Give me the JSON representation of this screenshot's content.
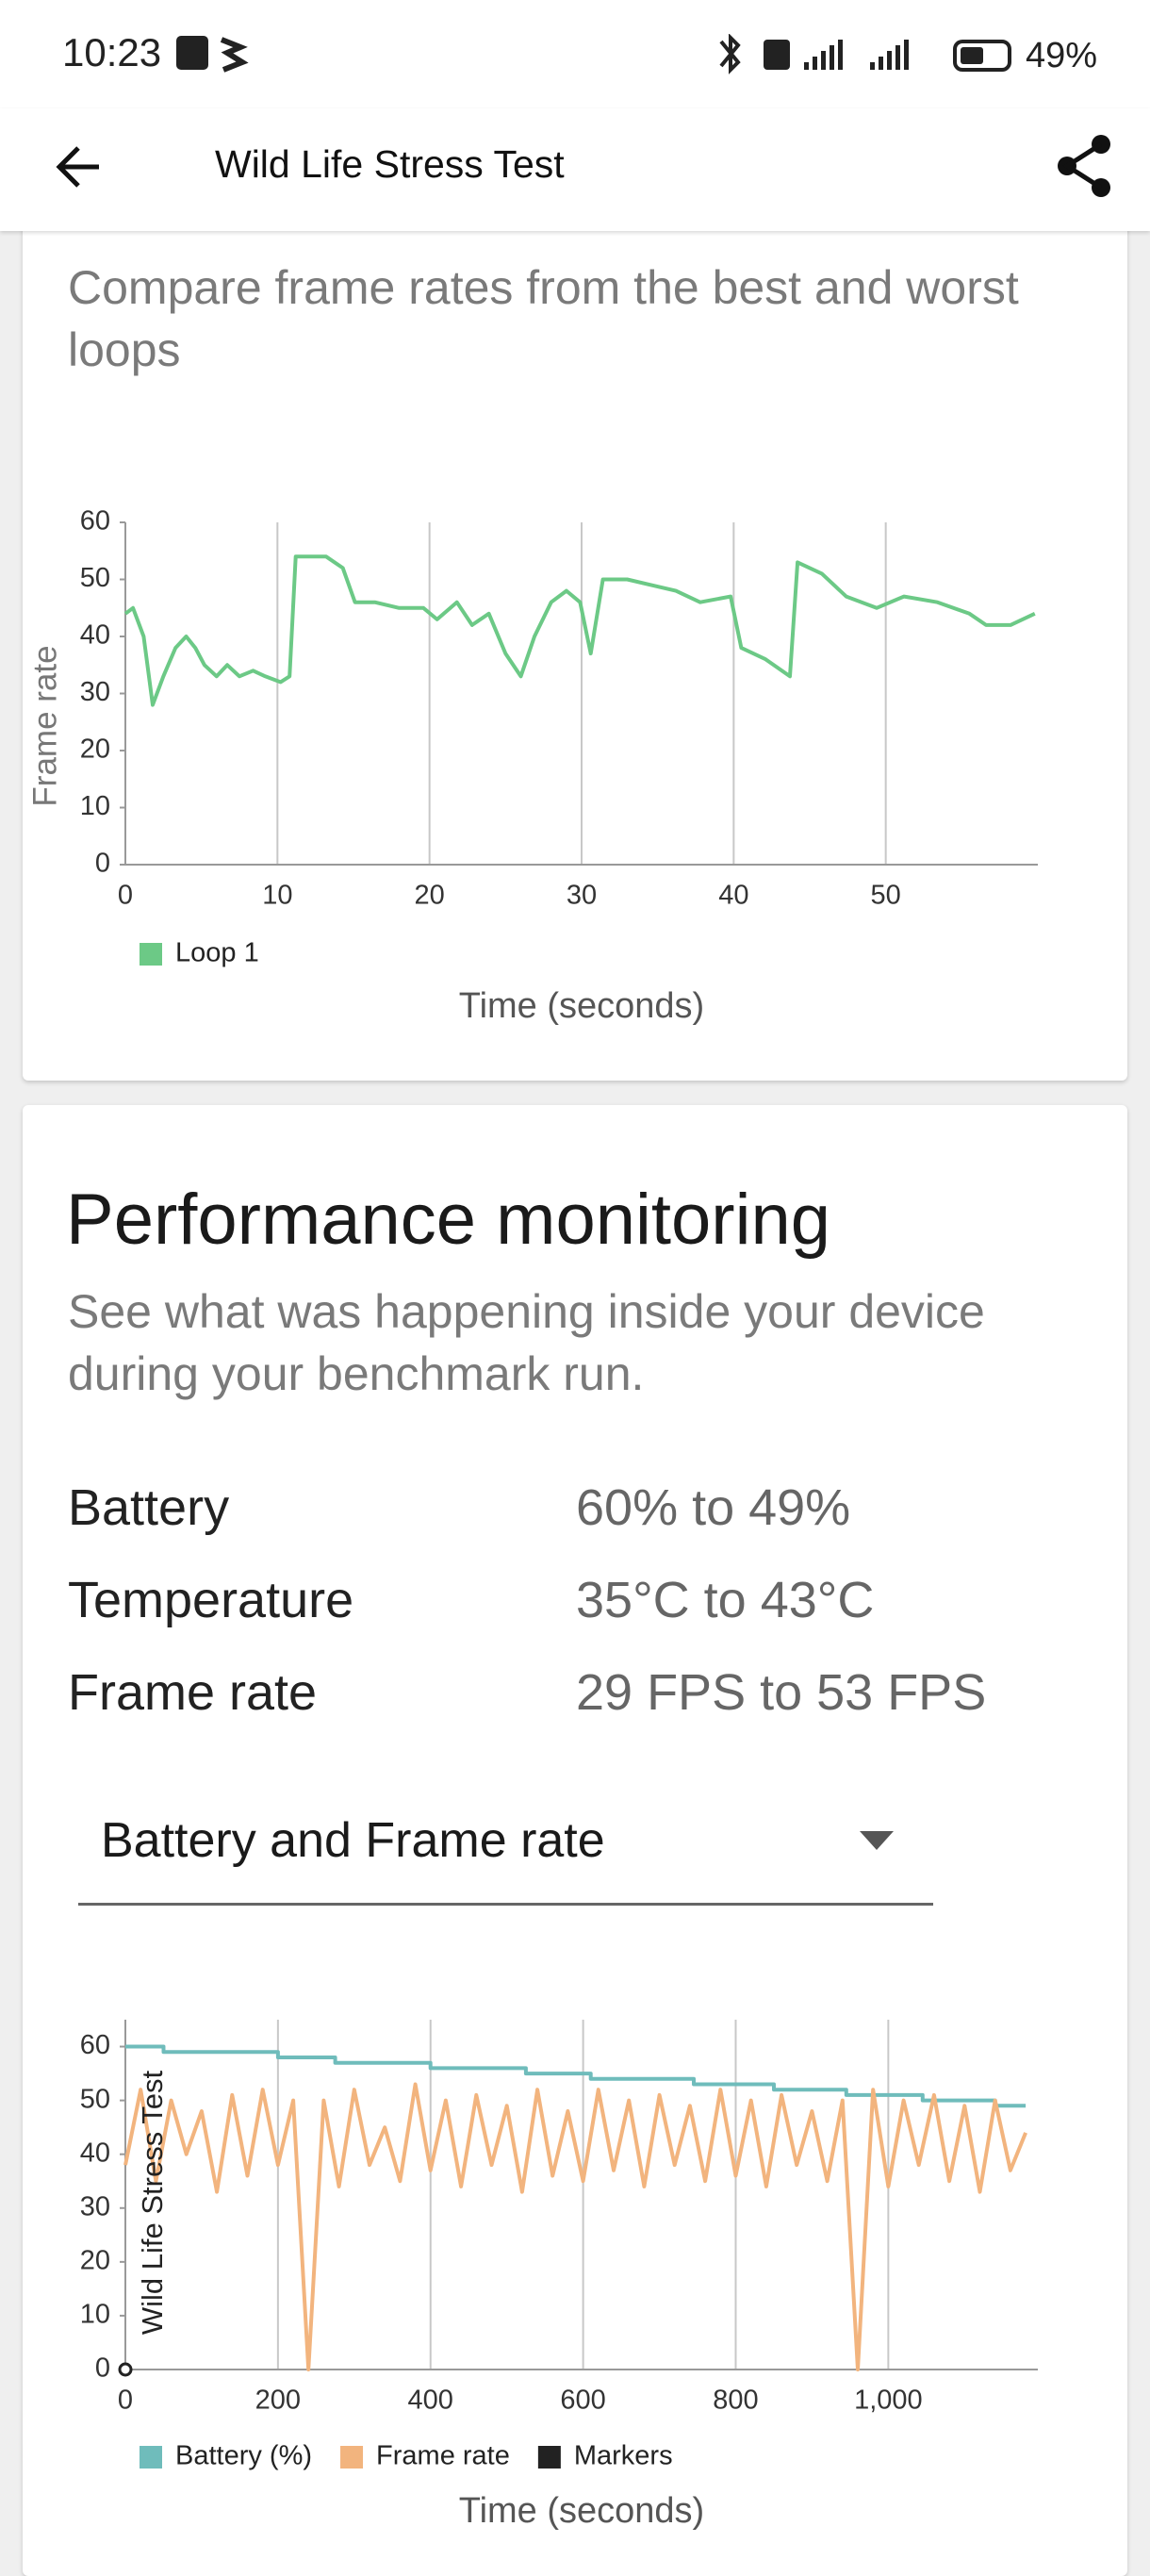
{
  "status_bar": {
    "time": "10:23",
    "battery": "49%"
  },
  "app_bar": {
    "title": "Wild Life Stress Test"
  },
  "best_worst": {
    "subtitle": "Compare frame rates from the best and worst loops"
  },
  "performance": {
    "title": "Performance monitoring",
    "subtitle": "See what was happening inside your device during your benchmark run.",
    "stats": [
      {
        "label": "Battery",
        "value": "60% to 49%"
      },
      {
        "label": "Temperature",
        "value": "35°C to 43°C"
      },
      {
        "label": "Frame rate",
        "value": "29 FPS to 53 FPS"
      }
    ],
    "dropdown": "Battery and Frame rate"
  },
  "chart_data": [
    {
      "type": "line",
      "x_label": "Time (seconds)",
      "y_label": "Frame rate",
      "x": [
        0,
        0.5,
        1.2,
        1.8,
        2.5,
        3.3,
        4,
        4.6,
        5.2,
        6,
        6.7,
        7.5,
        8.4,
        9.2,
        10.2,
        10.8,
        11.2,
        12.1,
        13.2,
        14.3,
        15.1,
        16.4,
        18,
        19.6,
        20.5,
        21.8,
        22.8,
        23.9,
        25,
        26,
        26.9,
        28,
        29,
        29.9,
        30.6,
        31.4,
        33,
        34.6,
        36.2,
        37.8,
        39.8,
        40.5,
        42.1,
        43.7,
        44.2,
        45.8,
        47.4,
        49.4,
        51.2,
        53.4,
        55.5,
        56.6,
        58.2,
        59.8
      ],
      "series": [
        {
          "name": "Loop 1",
          "color": "#6cc986",
          "values": [
            44,
            45,
            40,
            28,
            33,
            38,
            40,
            38,
            35,
            33,
            35,
            33,
            34,
            33,
            32,
            33,
            54,
            54,
            54,
            52,
            46,
            46,
            45,
            45,
            43,
            46,
            42,
            44,
            37,
            33,
            40,
            46,
            48,
            46,
            37,
            50,
            50,
            49,
            48,
            46,
            47,
            38,
            36,
            33,
            53,
            51,
            47,
            45,
            47,
            46,
            44,
            42,
            42,
            44
          ]
        }
      ],
      "xlim": [
        0,
        60
      ],
      "ylim": [
        0,
        60
      ],
      "xticks": [
        0,
        10,
        20,
        30,
        40,
        50
      ],
      "yticks": [
        0,
        10,
        20,
        30,
        40,
        50,
        60
      ],
      "grid": "x"
    },
    {
      "type": "line",
      "x_label": "Time (seconds)",
      "y_label": "Wild Life Stress Test",
      "series": [
        {
          "name": "Battery (%)",
          "color": "#6fbcbb",
          "x": [
            0,
            50,
            50,
            200,
            200,
            275,
            275,
            400,
            400,
            525,
            525,
            610,
            610,
            745,
            745,
            850,
            850,
            945,
            945,
            1045,
            1045,
            1140,
            1140,
            1180
          ],
          "values": [
            60,
            60,
            59,
            59,
            58,
            58,
            57,
            57,
            56,
            56,
            55,
            55,
            54,
            54,
            53,
            53,
            52,
            52,
            51,
            51,
            50,
            50,
            49,
            49
          ]
        },
        {
          "name": "Frame rate",
          "color": "#f2b47e",
          "x": [
            0,
            20,
            40,
            60,
            80,
            100,
            120,
            140,
            160,
            180,
            200,
            220,
            240,
            260,
            280,
            300,
            320,
            340,
            360,
            380,
            400,
            420,
            440,
            460,
            480,
            500,
            520,
            540,
            560,
            580,
            600,
            620,
            640,
            660,
            680,
            700,
            720,
            740,
            760,
            780,
            800,
            820,
            840,
            860,
            880,
            900,
            920,
            940,
            960,
            980,
            1000,
            1020,
            1040,
            1060,
            1080,
            1100,
            1120,
            1140,
            1160,
            1180
          ],
          "values": [
            38,
            52,
            35,
            50,
            40,
            48,
            33,
            51,
            36,
            52,
            38,
            50,
            0,
            50,
            34,
            52,
            38,
            45,
            35,
            53,
            37,
            50,
            34,
            51,
            38,
            49,
            33,
            52,
            36,
            48,
            35,
            52,
            37,
            50,
            34,
            51,
            38,
            49,
            35,
            52,
            36,
            50,
            34,
            51,
            38,
            48,
            35,
            50,
            0,
            52,
            34,
            50,
            38,
            51,
            35,
            49,
            33,
            50,
            37,
            44
          ]
        },
        {
          "name": "Markers",
          "color": "#222222",
          "mode": "markers",
          "x": [
            0
          ],
          "values": [
            0
          ]
        }
      ],
      "xlim": [
        0,
        1196
      ],
      "ylim": [
        0,
        65
      ],
      "xticks": [
        0,
        200,
        400,
        600,
        800,
        {
          "value": 1000,
          "label": "1,000"
        }
      ],
      "yticks": [
        0,
        10,
        20,
        30,
        40,
        50,
        60
      ],
      "grid": "x"
    }
  ]
}
